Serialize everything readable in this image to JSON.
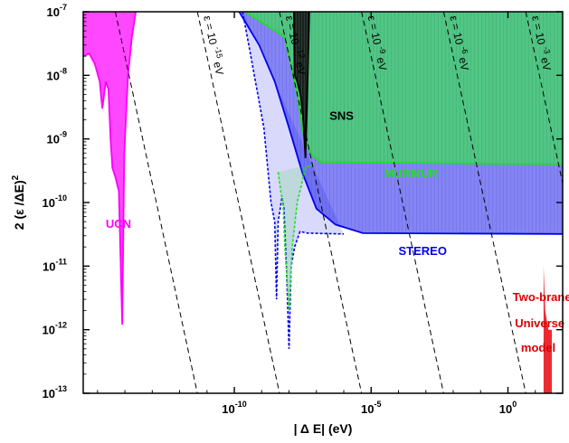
{
  "chart_data": {
    "type": "area",
    "xlabel": "| Δ E| (eV)",
    "ylabel": "2 (ε /ΔE)",
    "ylabel_exponent": "2",
    "xscale": "log",
    "yscale": "log",
    "xlim": [
      3e-16,
      100.0
    ],
    "ylim": [
      1e-13,
      1e-07
    ],
    "grid": false,
    "x_ticks": [
      {
        "value": 1e-10,
        "base": "10",
        "exp": "-10"
      },
      {
        "value": 1e-05,
        "base": "10",
        "exp": "-5"
      },
      {
        "value": 1,
        "base": "10",
        "exp": "0"
      }
    ],
    "y_ticks": [
      {
        "value": 1e-07,
        "base": "10",
        "exp": "-7"
      },
      {
        "value": 1e-08,
        "base": "10",
        "exp": "-8"
      },
      {
        "value": 1e-09,
        "base": "10",
        "exp": "-9"
      },
      {
        "value": 1e-10,
        "base": "10",
        "exp": "-10"
      },
      {
        "value": 1e-11,
        "base": "10",
        "exp": "-11"
      },
      {
        "value": 1e-12,
        "base": "10",
        "exp": "-12"
      },
      {
        "value": 1e-13,
        "base": "10",
        "exp": "-13"
      }
    ],
    "dashed_lines": [
      {
        "epsilon": 1e-18
      },
      {
        "epsilon": 1e-15,
        "label_base": "ε = 10",
        "label_exp": "-15",
        "label_unit": "eV"
      },
      {
        "epsilon": 1e-12,
        "label_base": "ε = 10",
        "label_exp": "-12",
        "label_unit": "eV"
      },
      {
        "epsilon": 1e-09,
        "label_base": "ε = 10",
        "label_exp": "-9",
        "label_unit": "eV"
      },
      {
        "epsilon": 1e-06,
        "label_base": "ε = 10",
        "label_exp": "-6",
        "label_unit": "eV"
      },
      {
        "epsilon": 0.001,
        "label_base": "ε = 10",
        "label_exp": "-3",
        "label_unit": "eV"
      }
    ],
    "series": [
      {
        "name": "UCN",
        "color": "#ff00ff",
        "fill": "#ff33ff",
        "boundary": [
          [
            3e-16,
            2e-08
          ],
          [
            5e-16,
            2.2e-08
          ],
          [
            8e-16,
            1.5e-08
          ],
          [
            1.2e-15,
            8e-09
          ],
          [
            1.5e-15,
            3e-09
          ],
          [
            2e-15,
            8e-09
          ],
          [
            2.5e-15,
            6e-09
          ],
          [
            3e-15,
            1e-09
          ],
          [
            3.5e-15,
            3.5e-10
          ],
          [
            4.5e-15,
            2.5e-10
          ],
          [
            6e-15,
            1.5e-10
          ],
          [
            8e-15,
            1.2e-12
          ],
          [
            9.5e-15,
            6e-10
          ],
          [
            1.3e-14,
            1e-08
          ],
          [
            1.8e-14,
            4e-08
          ],
          [
            2.5e-14,
            1e-07
          ]
        ]
      },
      {
        "name": "SNS",
        "color": "#000000",
        "fill": "#111111",
        "boundary": [
          [
            1.5e-08,
            1e-07
          ],
          [
            1.6e-08,
            1e-08
          ],
          [
            2e-08,
            8e-09
          ],
          [
            2.6e-08,
            5e-09
          ],
          [
            3.2e-08,
            2.5e-09
          ],
          [
            3.6e-08,
            1e-09
          ],
          [
            4e-08,
            5e-10
          ],
          [
            4.5e-08,
            3e-09
          ],
          [
            5.5e-08,
            1e-07
          ]
        ]
      },
      {
        "name": "MURMUR",
        "color": "#22dd22",
        "fill": "#4ccd78",
        "boundary": [
          [
            2.5e-10,
            1e-07
          ],
          [
            7e-09,
            4e-08
          ],
          [
            2e-08,
            5e-09
          ],
          [
            3e-08,
            1.5e-09
          ],
          [
            4e-08,
            9e-10
          ],
          [
            7e-08,
            5.5e-10
          ],
          [
            1.5e-07,
            4.3e-10
          ],
          [
            100.0,
            4e-10
          ]
        ],
        "dashed_dip": [
          [
            4e-09,
            3e-10
          ],
          [
            5e-09,
            1.5e-10
          ],
          [
            6e-09,
            1e-10
          ],
          [
            7e-09,
            2e-11
          ],
          [
            1e-08,
            2e-12
          ],
          [
            1.3e-08,
            2e-11
          ],
          [
            2e-08,
            1e-10
          ],
          [
            4e-08,
            3.5e-10
          ],
          [
            1e-07,
            4.2e-10
          ]
        ]
      },
      {
        "name": "STEREO",
        "color": "#0000ee",
        "fill": "#6f6ff2",
        "boundary": [
          [
            1.5e-10,
            1e-07
          ],
          [
            8e-10,
            3e-08
          ],
          [
            3e-09,
            8e-09
          ],
          [
            1e-08,
            1.5e-09
          ],
          [
            3e-08,
            3e-10
          ],
          [
            1e-07,
            8e-11
          ],
          [
            5e-07,
            4.5e-11
          ],
          [
            5e-06,
            3.3e-11
          ],
          [
            100.0,
            3.2e-11
          ]
        ],
        "dashed_dip": [
          [
            2e-10,
            1e-07
          ],
          [
            4e-10,
            2e-08
          ],
          [
            1.2e-09,
            1.5e-09
          ],
          [
            2.2e-09,
            1e-10
          ],
          [
            3e-09,
            5e-11
          ],
          [
            3.5e-09,
            3e-12
          ],
          [
            4e-09,
            5e-11
          ],
          [
            5.5e-09,
            1.2e-10
          ],
          [
            6.5e-09,
            8e-11
          ],
          [
            8e-09,
            1e-11
          ],
          [
            1e-08,
            5e-13
          ],
          [
            1.2e-08,
            1e-11
          ],
          [
            1.6e-08,
            2e-11
          ],
          [
            2.5e-08,
            3.5e-11
          ],
          [
            5e-08,
            3.3e-11
          ],
          [
            1e-06,
            3.2e-11
          ]
        ]
      },
      {
        "name": "Two-brane Universe model",
        "color": "#dd0000",
        "fill": "#e8151b",
        "boundary": [
          [
            20.0,
            1e-11
          ],
          [
            23.0,
            2e-12
          ],
          [
            30.0,
            1e-12
          ],
          [
            40.0,
            1e-12
          ],
          [
            40.0,
            1e-13
          ],
          [
            20.0,
            1e-13
          ]
        ]
      }
    ],
    "annotations": [
      {
        "text": "UCN",
        "color": "#ff00ff",
        "x": 2e-15,
        "y": 4e-11
      },
      {
        "text": "SNS",
        "color": "#000000",
        "x": 3e-07,
        "y": 2e-09
      },
      {
        "text": "MURMUR",
        "color": "#22dd22",
        "x": 3e-05,
        "y": 2.5e-10
      },
      {
        "text": "STEREO",
        "color": "#0000ee",
        "x": 0.0001,
        "y": 1.5e-11
      },
      {
        "text": "Two-brane",
        "color": "#dd0000",
        "x": 1.5,
        "y": 2.8e-12
      },
      {
        "text": "Universe",
        "color": "#dd0000",
        "x": 1.8,
        "y": 1.1e-12
      },
      {
        "text": "model",
        "color": "#dd0000",
        "x": 3.0,
        "y": 4.5e-13
      }
    ]
  }
}
